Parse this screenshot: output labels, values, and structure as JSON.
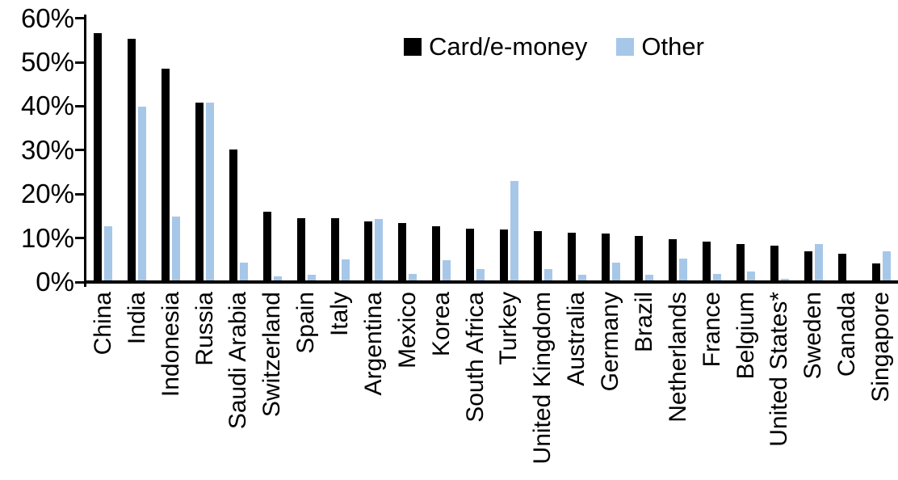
{
  "chart_data": {
    "type": "bar",
    "title": "",
    "xlabel": "",
    "ylabel": "",
    "y_ticks": [
      "0%",
      "10%",
      "20%",
      "30%",
      "40%",
      "50%",
      "60%"
    ],
    "ylim": [
      0,
      60
    ],
    "grid": false,
    "legend_position": "top-center-inside",
    "categories": [
      "China",
      "India",
      "Indonesia",
      "Russia",
      "Saudi Arabia",
      "Switzerland",
      "Spain",
      "Italy",
      "Argentina",
      "Mexico",
      "Korea",
      "South Africa",
      "Turkey",
      "United Kingdom",
      "Australia",
      "Germany",
      "Brazil",
      "Netherlands",
      "France",
      "Belgium",
      "United States*",
      "Sweden",
      "Canada",
      "Singapore"
    ],
    "series": [
      {
        "name": "Card/e-money",
        "color": "#000000",
        "values": [
          56.2,
          54.9,
          48.2,
          40.4,
          29.8,
          15.6,
          14.2,
          14.1,
          13.4,
          13.0,
          12.4,
          11.8,
          11.6,
          11.2,
          10.8,
          10.7,
          10.1,
          9.4,
          8.8,
          8.2,
          7.9,
          6.6,
          6.0,
          3.9
        ]
      },
      {
        "name": "Other",
        "color": "#A6C7E8",
        "values": [
          12.4,
          39.6,
          14.6,
          40.4,
          4.0,
          0.9,
          1.2,
          4.7,
          13.9,
          1.5,
          4.6,
          2.6,
          22.7,
          2.5,
          1.2,
          4.0,
          1.2,
          4.9,
          1.5,
          2.1,
          0.4,
          8.2,
          0,
          6.7
        ]
      }
    ]
  }
}
